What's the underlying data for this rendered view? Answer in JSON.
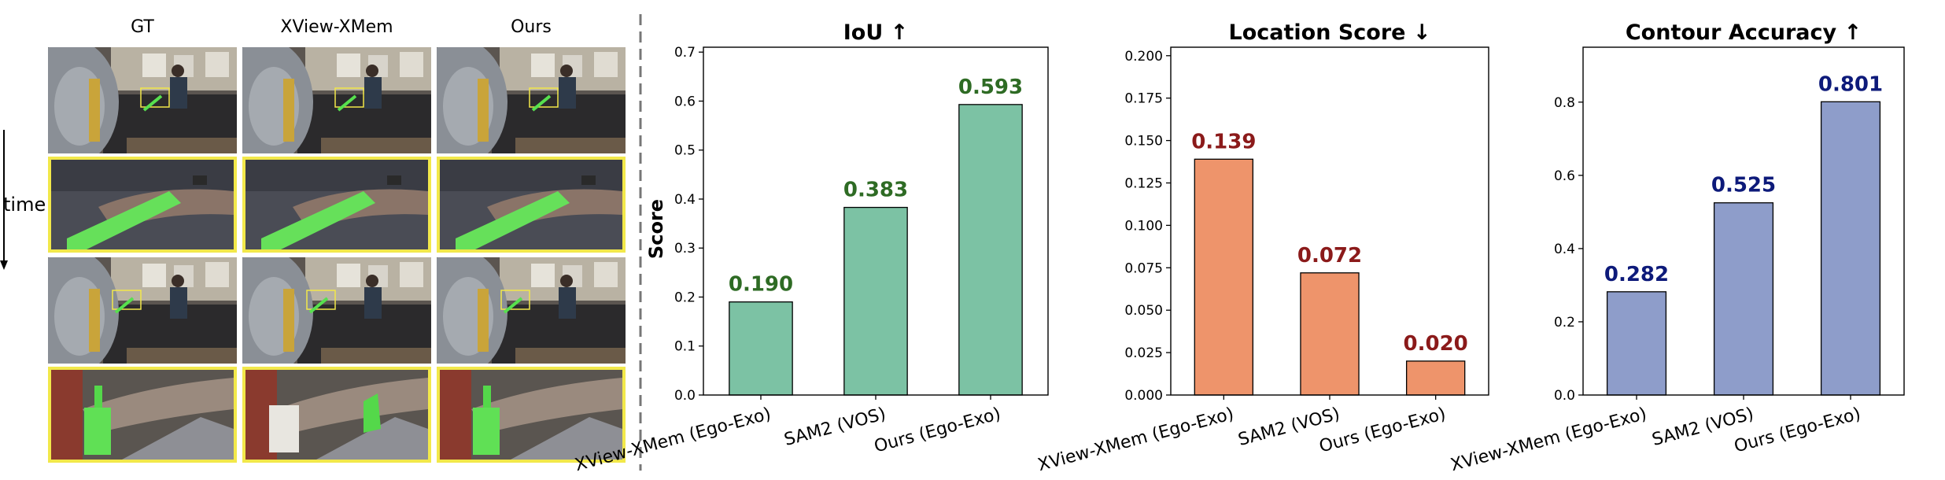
{
  "image_panel": {
    "columns": [
      "GT",
      "XView-XMem",
      "Ours"
    ],
    "time_label": "time"
  },
  "chart_data": [
    {
      "type": "bar",
      "title": "IoU ↑",
      "ylabel": "Score",
      "categories": [
        "XView-XMem (Ego-Exo)",
        "SAM2 (VOS)",
        "Ours (Ego-Exo)"
      ],
      "values": [
        0.19,
        0.383,
        0.593
      ],
      "value_labels": [
        "0.190",
        "0.383",
        "0.593"
      ],
      "ylim": [
        0,
        0.71
      ],
      "yticks": [
        0.0,
        0.1,
        0.2,
        0.3,
        0.4,
        0.5,
        0.6,
        0.7
      ],
      "ytick_labels": [
        "0.0",
        "0.1",
        "0.2",
        "0.3",
        "0.4",
        "0.5",
        "0.6",
        "0.7"
      ],
      "bar_color": "#7cc2a4",
      "label_color": "#2e6b24",
      "grid": false
    },
    {
      "type": "bar",
      "title": "Location Score ↓",
      "ylabel": "",
      "categories": [
        "XView-XMem (Ego-Exo)",
        "SAM2 (VOS)",
        "Ours (Ego-Exo)"
      ],
      "values": [
        0.139,
        0.072,
        0.02
      ],
      "value_labels": [
        "0.139",
        "0.072",
        "0.020"
      ],
      "ylim": [
        0,
        0.205
      ],
      "yticks": [
        0.0,
        0.025,
        0.05,
        0.075,
        0.1,
        0.125,
        0.15,
        0.175,
        0.2
      ],
      "ytick_labels": [
        "0.000",
        "0.025",
        "0.050",
        "0.075",
        "0.100",
        "0.125",
        "0.150",
        "0.175",
        "0.200"
      ],
      "bar_color": "#ee946b",
      "label_color": "#8b1a1a",
      "grid": false
    },
    {
      "type": "bar",
      "title": "Contour Accuracy ↑",
      "ylabel": "",
      "categories": [
        "XView-XMem (Ego-Exo)",
        "SAM2 (VOS)",
        "Ours (Ego-Exo)"
      ],
      "values": [
        0.282,
        0.525,
        0.801
      ],
      "value_labels": [
        "0.282",
        "0.525",
        "0.801"
      ],
      "ylim": [
        0,
        0.95
      ],
      "yticks": [
        0.0,
        0.2,
        0.4,
        0.6,
        0.8
      ],
      "ytick_labels": [
        "0.0",
        "0.2",
        "0.4",
        "0.6",
        "0.8"
      ],
      "bar_color": "#8e9dca",
      "label_color": "#0d1a7a",
      "grid": false
    }
  ]
}
